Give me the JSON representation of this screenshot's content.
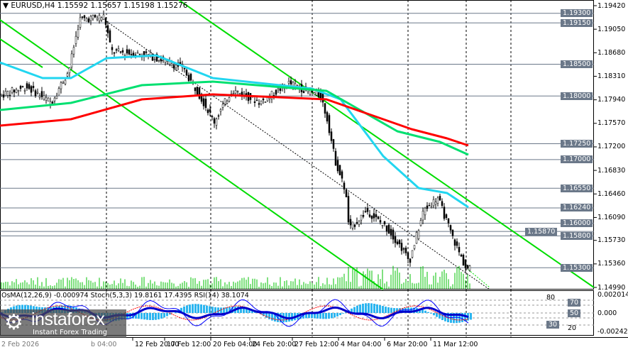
{
  "header": {
    "symbol": "EURUSD,H4",
    "ohlc": "1.15592 1.15657 1.15198 1.15276",
    "menu_icon": "triangle-down-icon"
  },
  "indicator": {
    "label": "OsMA(12,26,9) -0.000974 Stoch(5,3,3) 19.8161 17.4395  RSI(14) 38.1074",
    "max": "0.002014",
    "min": "-0.002422",
    "levels": [
      "80",
      "70",
      "50",
      "30",
      "20"
    ],
    "zero": "0.000"
  },
  "price_axis": [
    {
      "v": "1.19420",
      "p": 1.1942
    },
    {
      "v": "1.19050",
      "p": 1.1905
    },
    {
      "v": "1.18680",
      "p": 1.1868
    },
    {
      "v": "1.18310",
      "p": 1.1831
    },
    {
      "v": "1.17940",
      "p": 1.1794
    },
    {
      "v": "1.17570",
      "p": 1.1757
    },
    {
      "v": "1.17200",
      "p": 1.172
    },
    {
      "v": "1.16830",
      "p": 1.1683
    },
    {
      "v": "1.16460",
      "p": 1.1646
    },
    {
      "v": "1.16090",
      "p": 1.1609
    },
    {
      "v": "1.15730",
      "p": 1.1573
    },
    {
      "v": "1.15360",
      "p": 1.1536
    },
    {
      "v": "1.14990",
      "p": 1.1499
    }
  ],
  "levels": [
    {
      "v": "1.19300",
      "p": 1.193
    },
    {
      "v": "1.19150",
      "p": 1.1915
    },
    {
      "v": "1.18500",
      "p": 1.185
    },
    {
      "v": "1.18000",
      "p": 1.18
    },
    {
      "v": "1.17250",
      "p": 1.1725
    },
    {
      "v": "1.17000",
      "p": 1.17
    },
    {
      "v": "1.16550",
      "p": 1.1655
    },
    {
      "v": "1.16240",
      "p": 1.1624
    },
    {
      "v": "1.16000",
      "p": 1.16
    },
    {
      "v": "1.15870",
      "p": 1.1587
    },
    {
      "v": "1.15800",
      "p": 1.158
    },
    {
      "v": "1.15300",
      "p": 1.153
    }
  ],
  "time_axis": [
    "12 Feb 20:00",
    "17 Feb 12:00",
    "20 Feb 04:00",
    "24 Feb 20:00",
    "27 Feb 12:00",
    "4 Mar 04:00",
    "6 Mar 20:00",
    "11 Mar 12:00"
  ],
  "time_axis_hidden": [
    "2 Feb 2026",
    "b 04:00"
  ],
  "logo": {
    "name": "instaforex",
    "tagline": "Instant Forex Trading"
  },
  "colors": {
    "level": "#6b7889",
    "ma_red": "#ff0000",
    "ma_green": "#00e070",
    "ma_cyan": "#22d6f0",
    "channel": "#00dd00",
    "osma": "#2bb5f0",
    "stoch": "#0000ff",
    "rsi": "#ff0000"
  }
}
